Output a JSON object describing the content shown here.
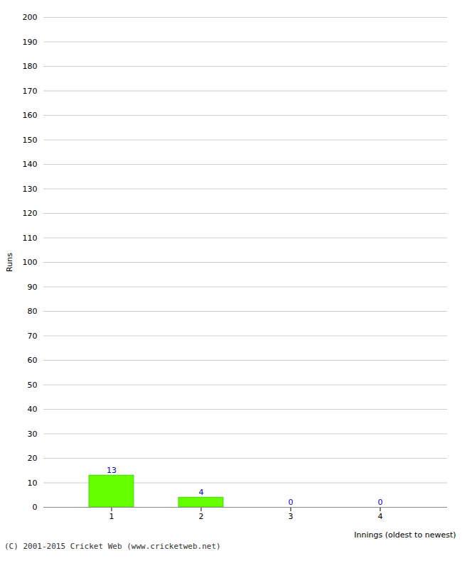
{
  "chart_data": {
    "type": "bar",
    "categories": [
      "1",
      "2",
      "3",
      "4"
    ],
    "values": [
      13,
      4,
      0,
      0
    ],
    "color": "#66ff00",
    "xlabel": "Innings (oldest to newest)",
    "ylabel": "Runs",
    "ylim": [
      0,
      200
    ],
    "yticks": [
      0,
      10,
      20,
      30,
      40,
      50,
      60,
      70,
      80,
      90,
      100,
      110,
      120,
      130,
      140,
      150,
      160,
      170,
      180,
      190,
      200
    ],
    "grid": true,
    "data_labels": true,
    "caption": "(C) 2001-2015 Cricket Web (www.cricketweb.net)"
  }
}
